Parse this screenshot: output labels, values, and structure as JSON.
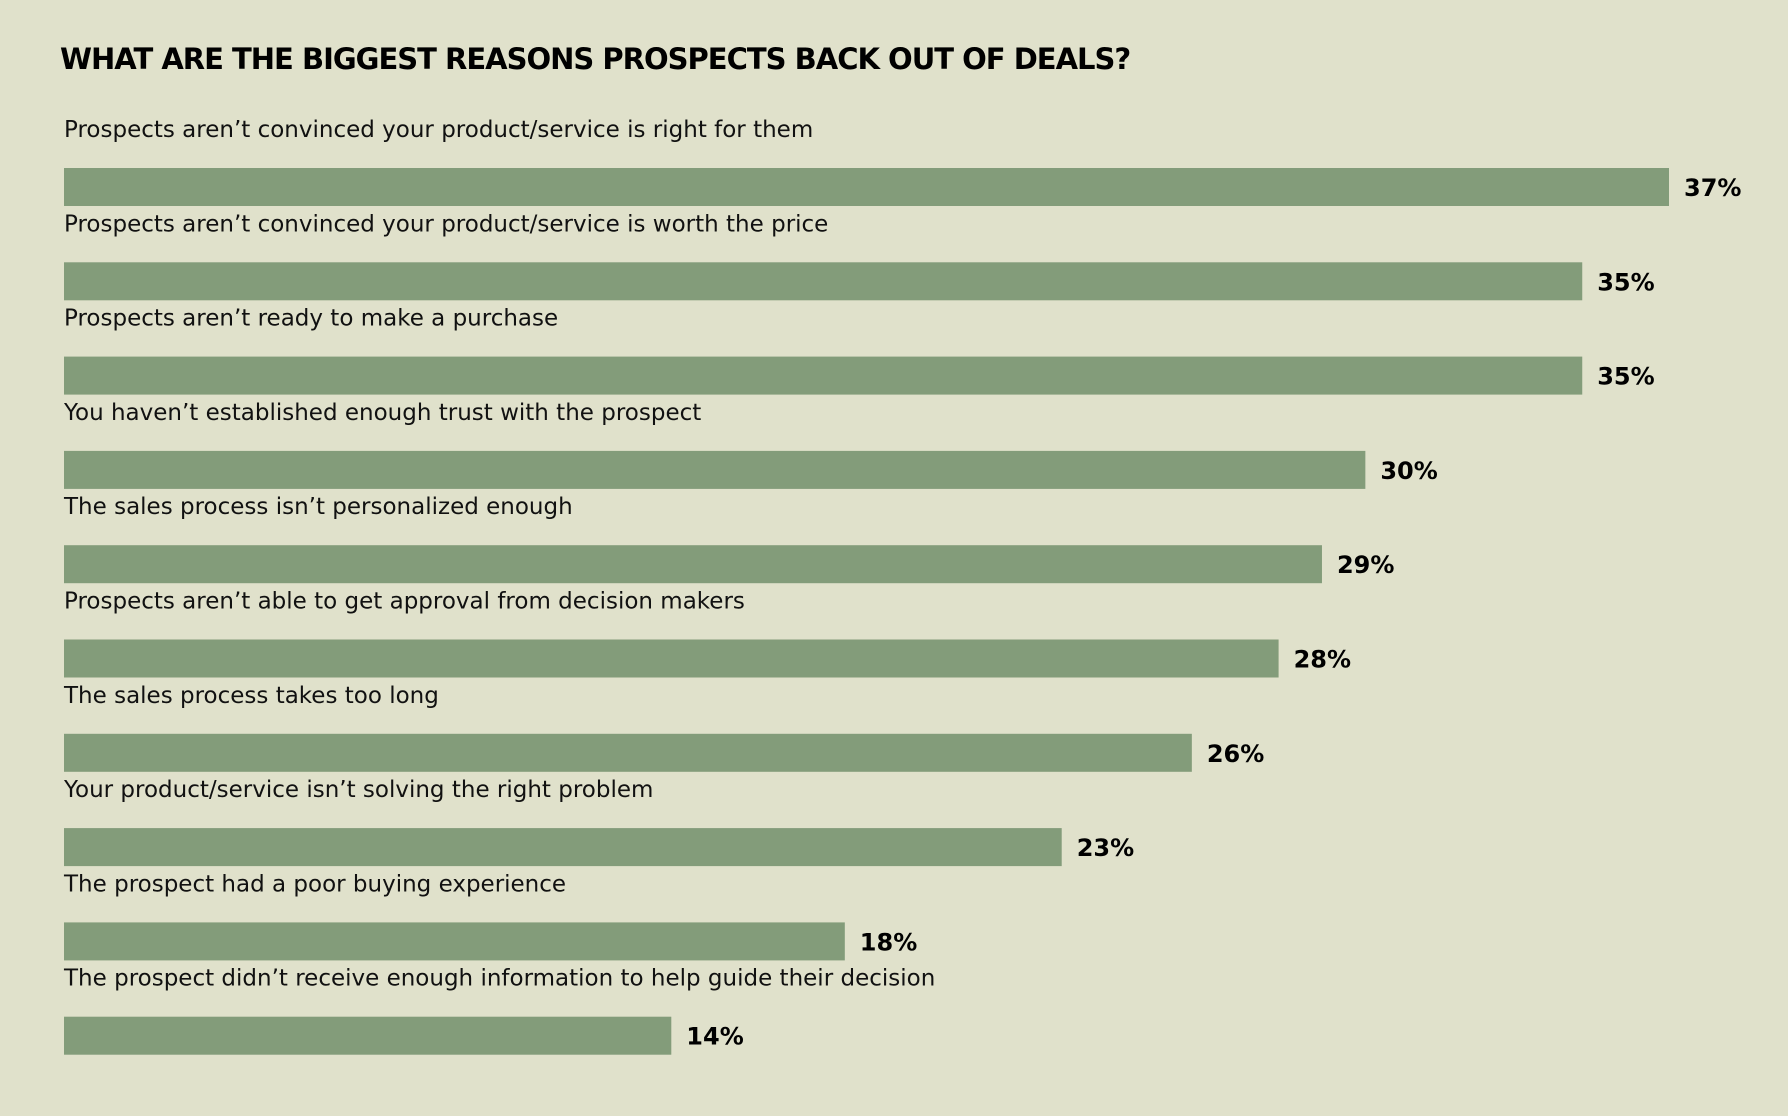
{
  "chart_data": {
    "type": "bar",
    "orientation": "horizontal",
    "title": "WHAT ARE THE BIGGEST REASONS PROSPECTS BACK OUT OF DEALS?",
    "categories": [
      "Prospects aren’t convinced your product/service is right for them",
      "Prospects aren’t convinced your product/service is worth the price",
      "Prospects aren’t ready to make a purchase",
      "You haven’t established enough trust with the prospect",
      "The sales process isn’t personalized enough",
      "Prospects aren’t able to get approval from decision makers",
      "The sales process takes too long",
      "Your product/service isn’t solving the right problem",
      "The prospect had a poor buying experience",
      "The prospect didn’t receive enough information to help guide their decision"
    ],
    "values": [
      37,
      35,
      35,
      30,
      29,
      28,
      26,
      23,
      18,
      14
    ],
    "value_labels": [
      "37%",
      "35%",
      "35%",
      "30%",
      "29%",
      "28%",
      "26%",
      "23%",
      "18%",
      "14%"
    ],
    "xlim": [
      0,
      37
    ],
    "grid": false,
    "legend": "none",
    "colors": {
      "background": "#e0e1cb",
      "bar": "#839c7a",
      "text": "#111111"
    }
  }
}
